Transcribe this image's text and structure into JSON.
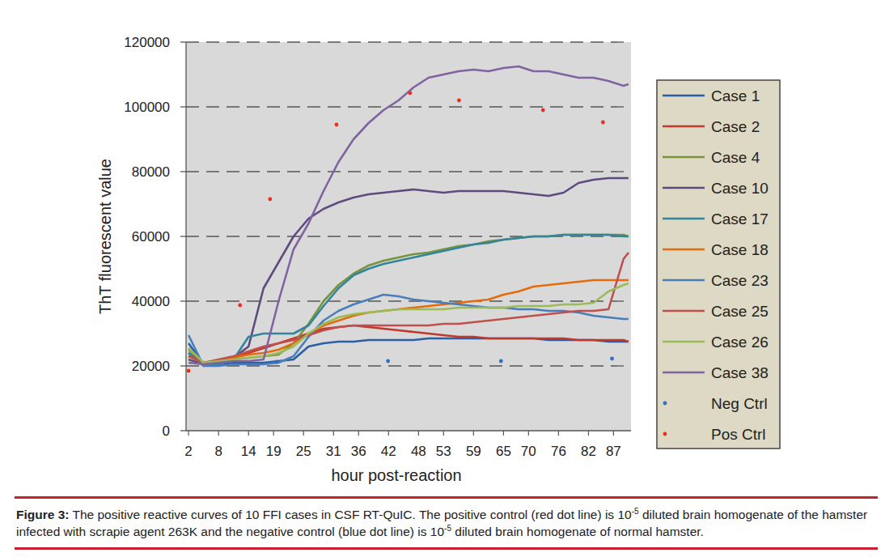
{
  "chart_data": {
    "type": "line",
    "xlabel": "hour post-reaction",
    "ylabel": "ThT fluorescent value",
    "x": [
      2,
      5,
      8,
      11,
      14,
      17,
      20,
      23,
      26,
      29,
      32,
      35,
      38,
      41,
      44,
      47,
      50,
      53,
      56,
      59,
      62,
      65,
      68,
      71,
      74,
      77,
      80,
      83,
      86,
      89,
      90
    ],
    "xlim": [
      1.5,
      90.5
    ],
    "xticks": [
      2,
      8,
      14,
      19,
      25,
      31,
      36,
      42,
      48,
      53,
      59,
      65,
      70,
      76,
      82,
      87
    ],
    "ylim": [
      0,
      120000
    ],
    "yticks": [
      0,
      20000,
      40000,
      60000,
      80000,
      100000,
      120000
    ],
    "grid": true,
    "legend": "right",
    "series": [
      {
        "name": "Case 1",
        "color": "#2a5ea6",
        "type": "line",
        "values": [
          27000,
          20500,
          20500,
          21000,
          21000,
          21000,
          21500,
          22000,
          26000,
          27000,
          27500,
          27500,
          28000,
          28000,
          28000,
          28000,
          28500,
          28500,
          28500,
          28500,
          28500,
          28500,
          28500,
          28500,
          28000,
          28000,
          28000,
          28000,
          27500,
          27500,
          27500
        ]
      },
      {
        "name": "Case 2",
        "color": "#c0392b",
        "type": "line",
        "values": [
          24000,
          21000,
          21500,
          22500,
          24000,
          25500,
          27000,
          28500,
          30000,
          31500,
          32000,
          32500,
          32000,
          31500,
          31000,
          30500,
          30000,
          29500,
          29000,
          29000,
          28500,
          28500,
          28500,
          28500,
          28500,
          28500,
          28000,
          28000,
          28000,
          28000,
          27500
        ]
      },
      {
        "name": "Case 4",
        "color": "#77933c",
        "type": "line",
        "values": [
          25000,
          21000,
          21500,
          22000,
          22500,
          23000,
          23500,
          27000,
          33000,
          40000,
          45000,
          48500,
          51000,
          52500,
          53500,
          54500,
          55000,
          56000,
          57000,
          57500,
          58500,
          59000,
          59500,
          60000,
          60000,
          60500,
          60500,
          60500,
          60500,
          60500,
          60000
        ]
      },
      {
        "name": "Case 10",
        "color": "#5f4b7e",
        "type": "line",
        "values": [
          22000,
          20500,
          21500,
          22500,
          26000,
          44000,
          52000,
          60000,
          65500,
          68500,
          70500,
          72000,
          73000,
          73500,
          74000,
          74500,
          74000,
          73500,
          74000,
          74000,
          74000,
          74000,
          73500,
          73000,
          72500,
          73500,
          76500,
          77500,
          78000,
          78000,
          78000
        ]
      },
      {
        "name": "Case 17",
        "color": "#31859c",
        "type": "line",
        "values": [
          24000,
          20000,
          20500,
          22000,
          29000,
          30000,
          30000,
          30000,
          32500,
          38500,
          44000,
          48000,
          50000,
          51500,
          52500,
          53500,
          54500,
          55500,
          56500,
          57500,
          58000,
          59000,
          59500,
          60000,
          60000,
          60500,
          60500,
          60500,
          60500,
          60000,
          60000
        ]
      },
      {
        "name": "Case 18",
        "color": "#e46c0a",
        "type": "line",
        "values": [
          23000,
          21000,
          21500,
          22500,
          23500,
          24000,
          25000,
          27000,
          30000,
          32500,
          34000,
          35500,
          36500,
          37000,
          37500,
          38000,
          38500,
          39000,
          39500,
          40000,
          40500,
          42000,
          43000,
          44500,
          45000,
          45500,
          46000,
          46500,
          46500,
          46500,
          46500
        ]
      },
      {
        "name": "Case 23",
        "color": "#4a7ebb",
        "type": "line",
        "values": [
          29500,
          20000,
          20000,
          20500,
          20500,
          20500,
          21000,
          23000,
          29000,
          34000,
          37000,
          39000,
          40500,
          42000,
          41500,
          40500,
          40000,
          39500,
          39000,
          38500,
          38000,
          38000,
          37500,
          37500,
          37000,
          37000,
          36500,
          35500,
          35000,
          34500,
          34500
        ]
      },
      {
        "name": "Case 25",
        "color": "#c0504d",
        "type": "line",
        "values": [
          23000,
          21000,
          22000,
          23000,
          24500,
          26000,
          27000,
          28000,
          29500,
          31000,
          32000,
          32500,
          32500,
          32500,
          32500,
          32500,
          32500,
          33000,
          33000,
          33500,
          34000,
          34500,
          35000,
          35500,
          36000,
          36500,
          37000,
          37000,
          37500,
          53000,
          55000
        ]
      },
      {
        "name": "Case 26",
        "color": "#9bbb59",
        "type": "line",
        "values": [
          25500,
          21000,
          21500,
          22000,
          22500,
          23000,
          24000,
          26000,
          30000,
          33000,
          35000,
          36000,
          36500,
          37000,
          37500,
          37500,
          37500,
          37500,
          38000,
          38000,
          38000,
          38000,
          38500,
          38500,
          38500,
          39000,
          39000,
          39500,
          43000,
          45000,
          45500
        ]
      },
      {
        "name": "Case 38",
        "color": "#8064a2",
        "type": "line",
        "values": [
          21000,
          20500,
          21000,
          21500,
          21500,
          22000,
          40000,
          56000,
          64000,
          74000,
          83000,
          90000,
          95000,
          99000,
          102000,
          106000,
          109000,
          110000,
          111000,
          111500,
          111000,
          112000,
          112500,
          111000,
          111000,
          110000,
          109000,
          109000,
          108000,
          106500,
          107000
        ]
      },
      {
        "name": "Neg Ctrl",
        "color": "#2e6fc4",
        "type": "scatter",
        "marker": "circle",
        "x": [
          19.6,
          41.9,
          64.5,
          86.7
        ],
        "values": [
          21250,
          21500,
          21500,
          22250
        ]
      },
      {
        "name": "Pos Ctrl",
        "color": "#e8301c",
        "type": "scatter",
        "marker": "circle",
        "x": [
          2,
          12.3,
          18.3,
          31.6,
          46.3,
          56.1,
          72.9,
          84.9
        ],
        "values": [
          18500,
          38750,
          71500,
          94500,
          104250,
          102000,
          99000,
          95250
        ]
      }
    ],
    "caption": [
      {
        "text": "Figure 3:",
        "style": "bold"
      },
      {
        "text": " The positive reactive curves of 10 FFI cases in CSF RT-QuIC. The positive control (red dot line) is 10",
        "style": "plain"
      },
      {
        "text": "-5",
        "style": "sup"
      },
      {
        "text": " diluted brain homogenate of the hamster infected with scrapie agent 263K and the negative control (blue dot line) is 10",
        "style": "plain"
      },
      {
        "text": "-5",
        "style": "sup"
      },
      {
        "text": " diluted brain homogenate of normal hamster.",
        "style": "plain"
      }
    ]
  }
}
